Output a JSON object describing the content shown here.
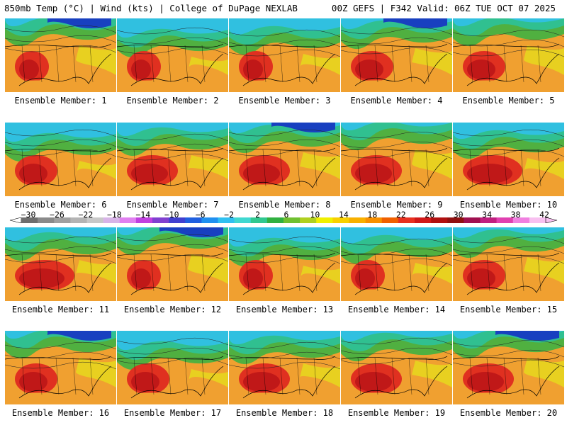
{
  "header": {
    "left": "850mb Temp (°C) | Wind (kts) | College of DuPage NEXLAB",
    "right": "00Z GEFS | F342 Valid: 06Z TUE OCT 07 2025"
  },
  "members": [
    {
      "label": "Ensemble Member: 1"
    },
    {
      "label": "Ensemble Member: 2"
    },
    {
      "label": "Ensemble Member: 3"
    },
    {
      "label": "Ensemble Member: 4"
    },
    {
      "label": "Ensemble Member: 5"
    },
    {
      "label": "Ensemble Member: 6"
    },
    {
      "label": "Ensemble Member: 7"
    },
    {
      "label": "Ensemble Member: 8"
    },
    {
      "label": "Ensemble Member: 9"
    },
    {
      "label": "Ensemble Member: 10"
    },
    {
      "label": "Ensemble Member: 11"
    },
    {
      "label": "Ensemble Member: 12"
    },
    {
      "label": "Ensemble Member: 13"
    },
    {
      "label": "Ensemble Member: 14"
    },
    {
      "label": "Ensemble Member: 15"
    },
    {
      "label": "Ensemble Member: 16"
    },
    {
      "label": "Ensemble Member: 17"
    },
    {
      "label": "Ensemble Member: 18"
    },
    {
      "label": "Ensemble Member: 19"
    },
    {
      "label": "Ensemble Member: 20"
    }
  ],
  "colorbar": {
    "tick_labels": [
      "−30",
      "−26",
      "−22",
      "−18",
      "−14",
      "−10",
      "−6",
      "−2",
      "2",
      "6",
      "10",
      "14",
      "18",
      "22",
      "26",
      "30",
      "34",
      "38",
      "42"
    ],
    "colors": [
      "#6e6e6e",
      "#8a8a8a",
      "#a0a0a0",
      "#b4b4b4",
      "#c8c8c8",
      "#d8b4e8",
      "#e080f0",
      "#c040e0",
      "#8040d0",
      "#4040d0",
      "#2060e0",
      "#2090f0",
      "#30c0f0",
      "#40d8d0",
      "#30c890",
      "#30b040",
      "#70c030",
      "#b0d020",
      "#f0f000",
      "#f8d000",
      "#f8b000",
      "#f89000",
      "#f06000",
      "#e83020",
      "#d01818",
      "#b01010",
      "#901010",
      "#a01050",
      "#c02080",
      "#e040b0",
      "#f080e0",
      "#f8c0f0"
    ]
  },
  "palette": {
    "cold": "#1840c0",
    "cyan": "#30c0e0",
    "teal": "#30c090",
    "green": "#50b040",
    "yellow": "#e8d020",
    "orange": "#f0a030",
    "red": "#e03020",
    "deepred": "#c01818"
  }
}
